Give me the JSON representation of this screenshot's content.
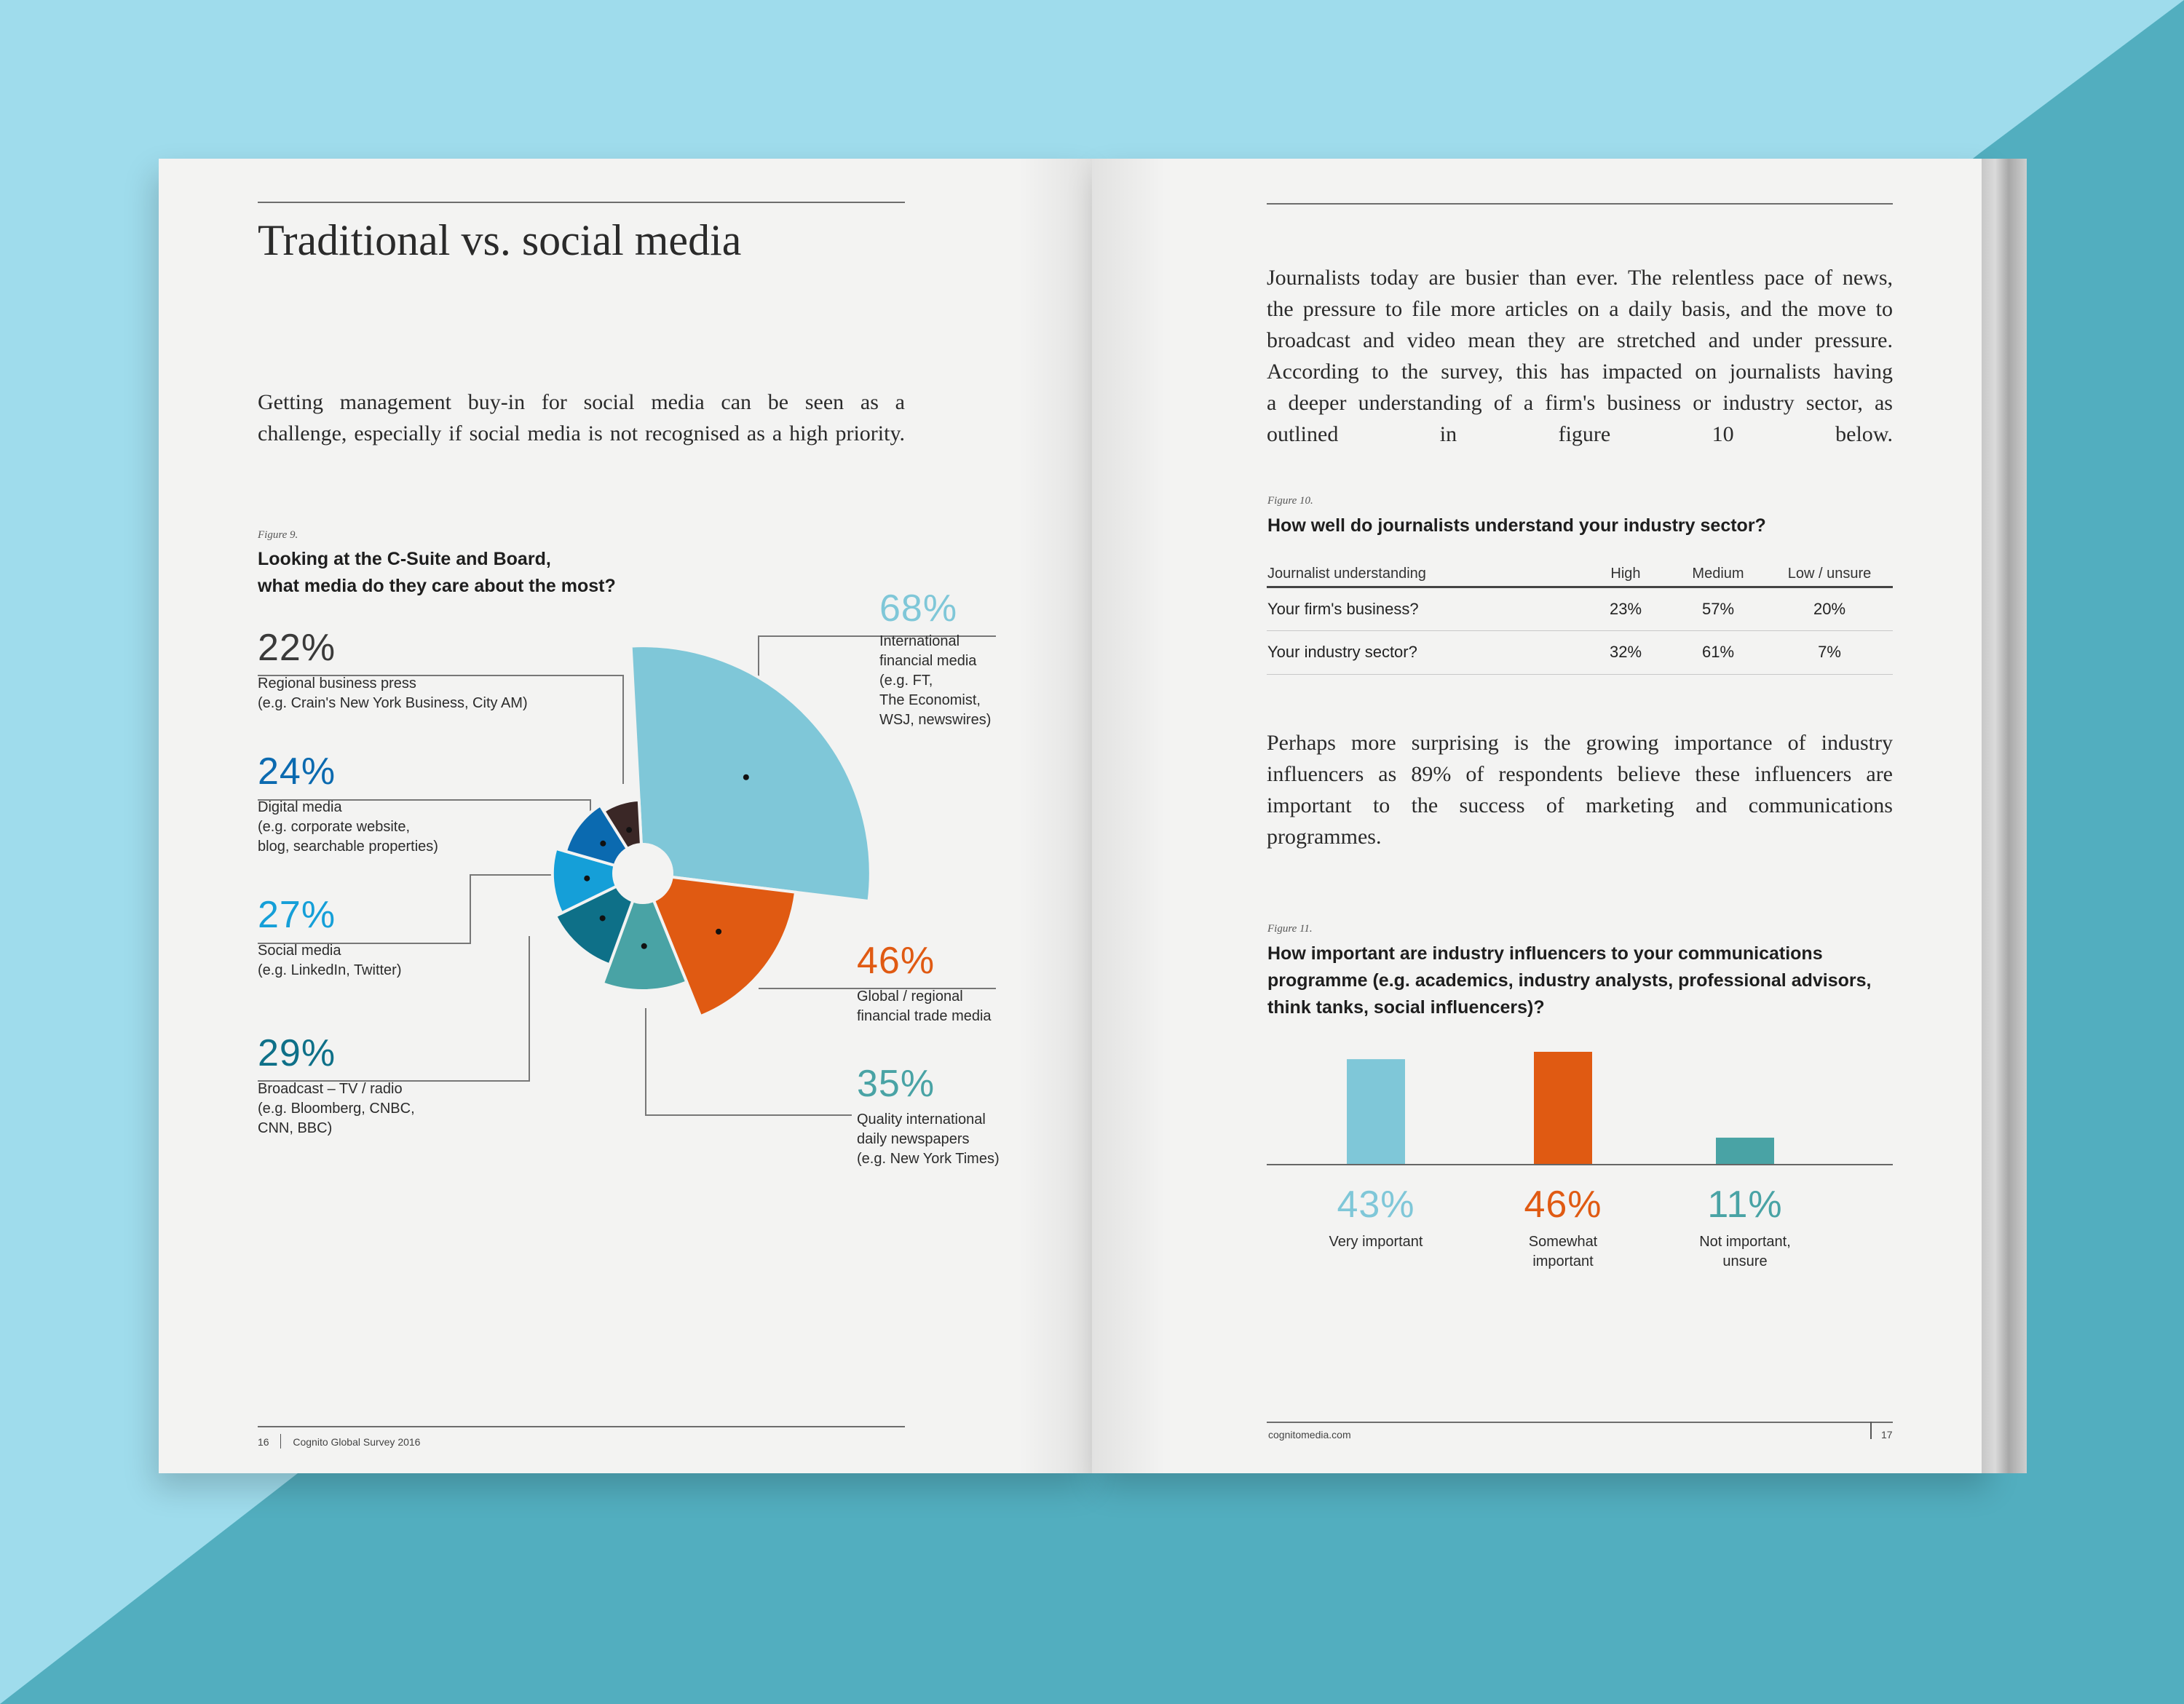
{
  "colors": {
    "background_light": "#9fdcec",
    "background_dark": "#52aebf",
    "page": "#f3f3f2",
    "light_blue": "#7fc7d8",
    "orange": "#e05a12",
    "teal": "#49a3a5",
    "dark_teal": "#0e7088",
    "sky_blue": "#159fd8",
    "royal_blue": "#0b6ab0",
    "dark_brown": "#3a2726"
  },
  "left_page": {
    "title": "Traditional vs. social media",
    "intro_lines": [
      "Getting management buy-in for social media can be seen as a",
      "challenge, especially if social media is not recognised as a high priority."
    ],
    "figure_label": "Figure 9.",
    "figure_title_lines": [
      "Looking at the C-Suite and Board,",
      "what media do they care about the most?"
    ],
    "footer_page": "16",
    "footer_text": "Cognito Global Survey 2016"
  },
  "chart_data": {
    "type": "pie",
    "title": "Looking at the C-Suite and Board, what media do they care about the most?",
    "unit": "%",
    "categories": [
      "International financial media (e.g. FT, The Economist, WSJ, newswires)",
      "Global / regional financial trade media",
      "Quality international daily newspapers (e.g. New York Times)",
      "Broadcast – TV / radio (e.g. Bloomberg, CNBC, CNN, BBC)",
      "Social media (e.g. LinkedIn, Twitter)",
      "Digital media (e.g. corporate website, blog, searchable properties)",
      "Regional business press (e.g. Crain's New York Business, City AM)"
    ],
    "values": [
      68,
      46,
      35,
      29,
      27,
      24,
      22
    ],
    "slices": [
      {
        "value": "68%",
        "color": "#7fc7d8",
        "label_lines": [
          "International",
          "financial media",
          "(e.g. FT,",
          "The Economist,",
          "WSJ, newswires)"
        ]
      },
      {
        "value": "46%",
        "color": "#e05a12",
        "label_lines": [
          "Global / regional",
          "financial trade media"
        ]
      },
      {
        "value": "35%",
        "color": "#49a3a5",
        "label_lines": [
          "Quality international",
          "daily newspapers",
          "(e.g. New York Times)"
        ]
      },
      {
        "value": "29%",
        "color": "#0e7088",
        "label_lines": [
          "Broadcast – TV / radio",
          "(e.g. Bloomberg, CNBC,",
          "CNN, BBC)"
        ]
      },
      {
        "value": "27%",
        "color": "#159fd8",
        "label_lines": [
          "Social media",
          "(e.g. LinkedIn, Twitter)"
        ]
      },
      {
        "value": "24%",
        "color": "#0b6ab0",
        "label_lines": [
          "Digital media",
          "(e.g. corporate website,",
          "blog, searchable properties)"
        ]
      },
      {
        "value": "22%",
        "color": "#3a2726",
        "label_lines": [
          "Regional business press",
          "(e.g. Crain's New York Business, City AM)"
        ]
      }
    ]
  },
  "right_page": {
    "intro_lines": [
      "Journalists today are busier than ever. The relentless pace of news,",
      "the pressure to file more articles on a daily basis, and the move to",
      "broadcast and video mean they are stretched and under pressure.",
      "According to the survey, this has impacted on journalists having",
      "a deeper understanding of a firm's business or industry sector, as",
      "outlined in figure 10 below."
    ],
    "figure10_label": "Figure 10.",
    "figure10_title": "How well do journalists understand your industry sector?",
    "table": {
      "headers": [
        "Journalist understanding",
        "High",
        "Medium",
        "Low / unsure"
      ],
      "rows": [
        [
          "Your firm's business?",
          "23%",
          "57%",
          "20%"
        ],
        [
          "Your industry sector?",
          "32%",
          "61%",
          "7%"
        ]
      ]
    },
    "middle_lines": [
      "Perhaps more surprising is the growing importance of industry",
      "influencers as 89% of respondents believe these influencers are",
      "important to the success of marketing and communications",
      "programmes."
    ],
    "figure11_label": "Figure 11.",
    "figure11_title_lines": [
      "How important are industry influencers to your communications",
      "programme (e.g. academics, industry analysts, professional advisors,",
      "think tanks, social influencers)?"
    ],
    "bars": [
      {
        "value": 43,
        "value_label": "43%",
        "label_lines": [
          "Very important"
        ],
        "color": "#7fc7d8"
      },
      {
        "value": 46,
        "value_label": "46%",
        "label_lines": [
          "Somewhat",
          "important"
        ],
        "color": "#e05a12"
      },
      {
        "value": 11,
        "value_label": "11%",
        "label_lines": [
          "Not important,",
          "unsure"
        ],
        "color": "#49a3a5"
      }
    ],
    "footer_url": "cognitomedia.com",
    "footer_page": "17"
  }
}
